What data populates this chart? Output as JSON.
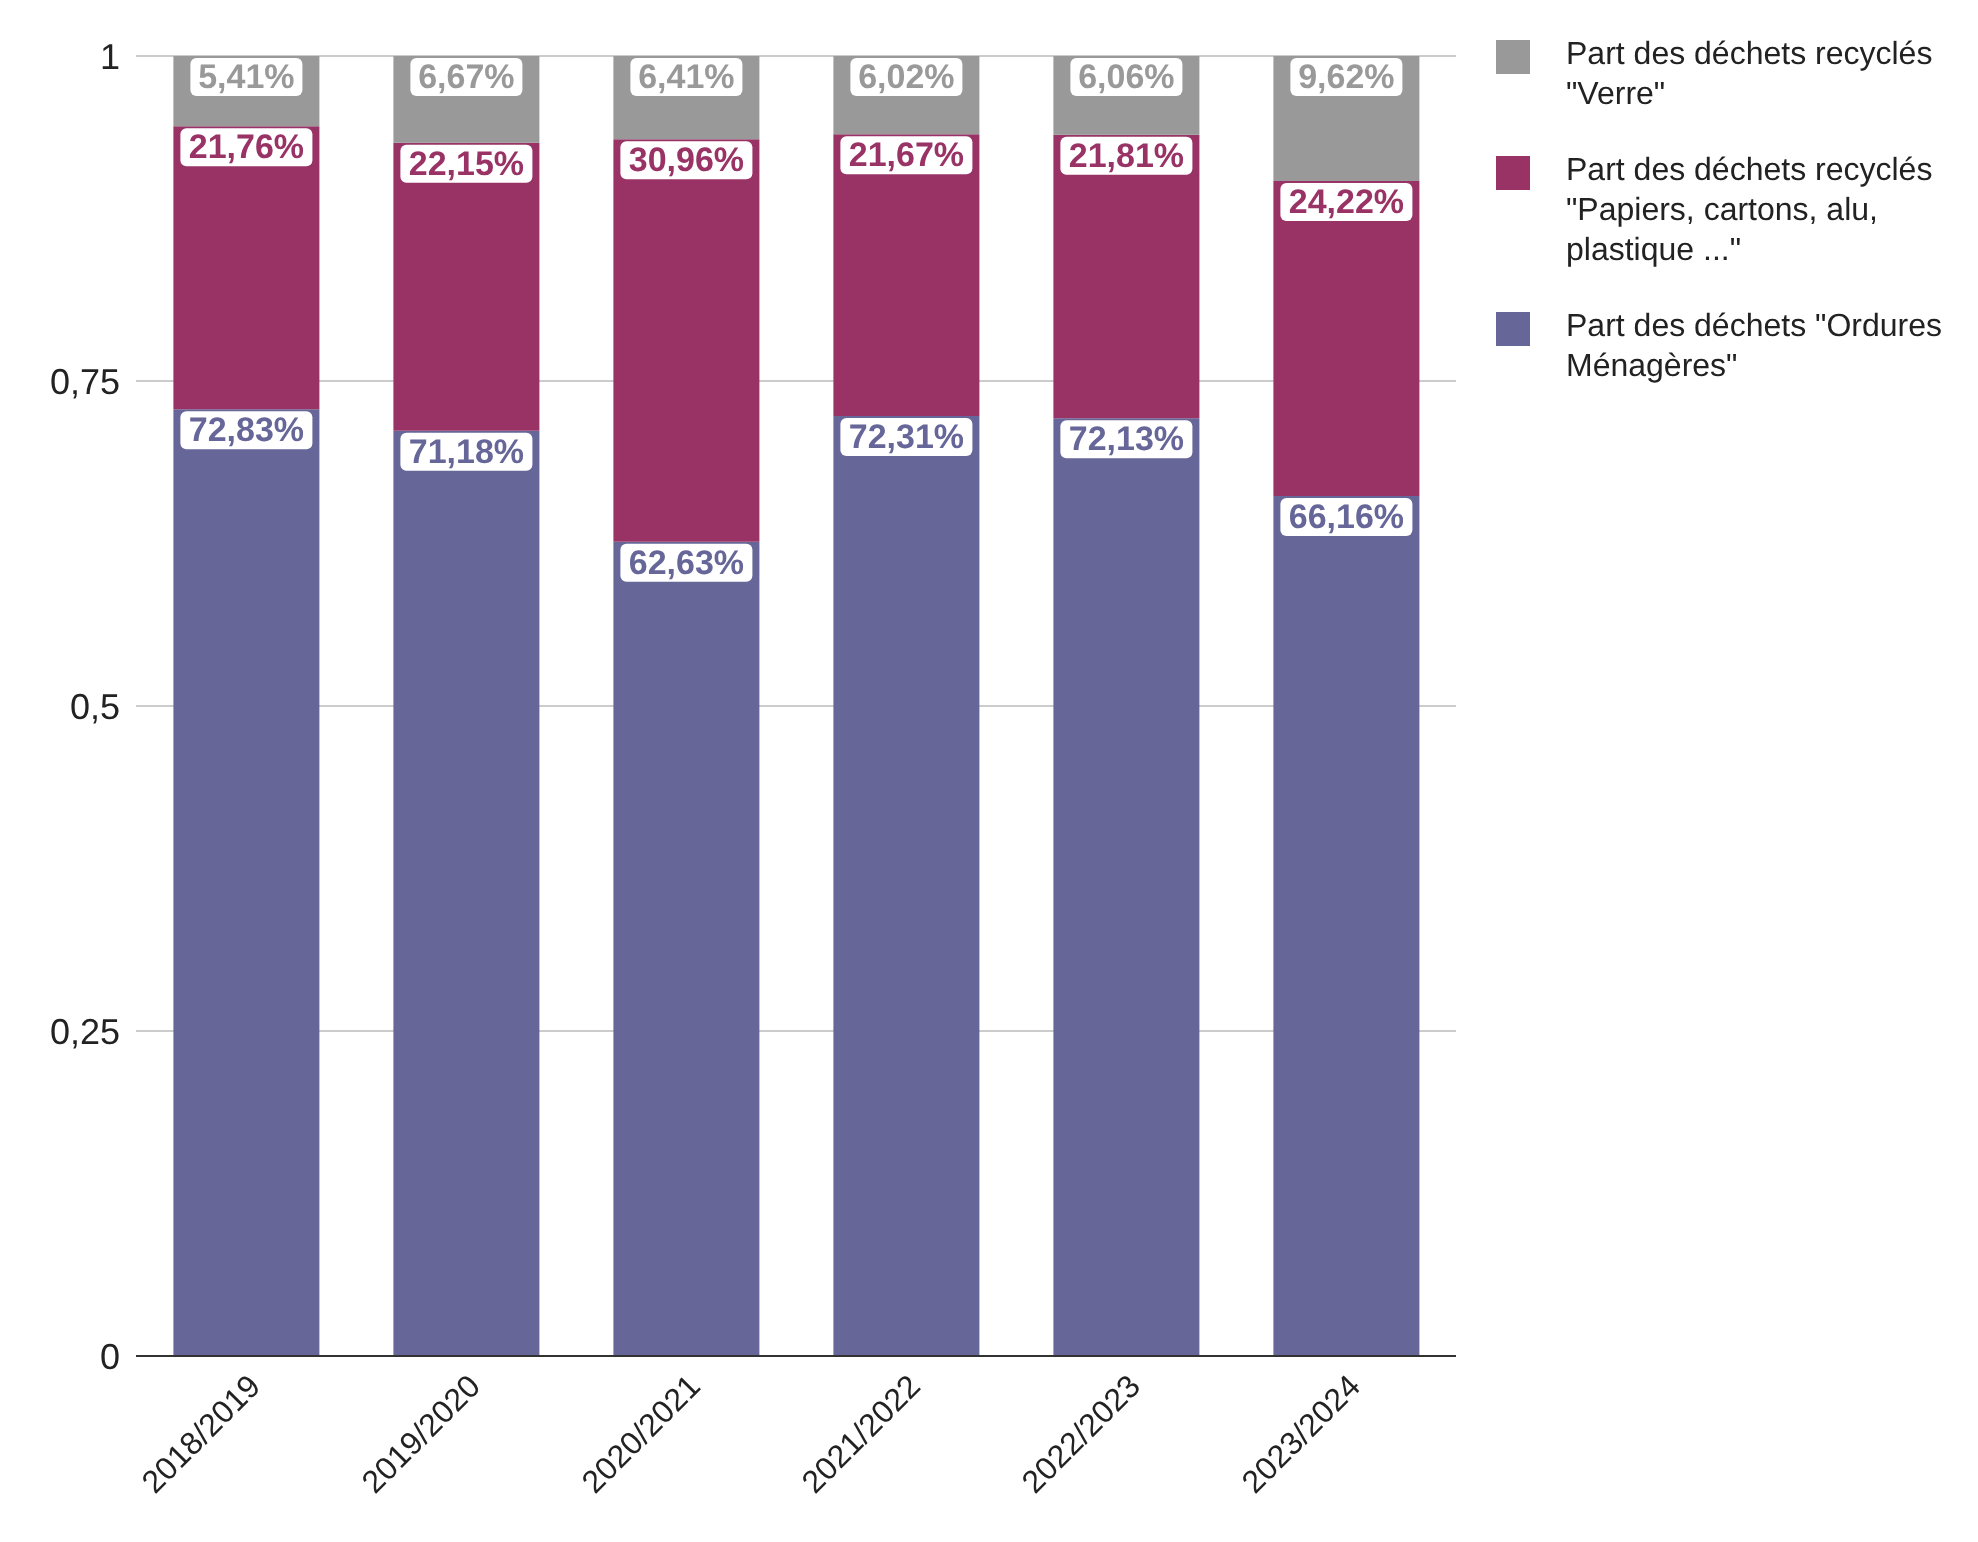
{
  "chart_data": {
    "type": "bar",
    "stacked": true,
    "categories": [
      "2018/2019",
      "2019/2020",
      "2020/2021",
      "2021/2022",
      "2022/2023",
      "2023/2024"
    ],
    "series": [
      {
        "name": "Part des déchets \"Ordures Ménagères\"",
        "color": "#666699",
        "values": [
          0.7283,
          0.7118,
          0.6263,
          0.7231,
          0.7213,
          0.6616
        ],
        "value_labels": [
          "72,83%",
          "71,18%",
          "62,63%",
          "72,31%",
          "72,13%",
          "66,16%"
        ]
      },
      {
        "name": "Part des déchets recyclés \"Papiers, cartons, alu, plastique ...\"",
        "color": "#993366",
        "values": [
          0.2176,
          0.2215,
          0.3096,
          0.2167,
          0.2181,
          0.2422
        ],
        "value_labels": [
          "21,76%",
          "22,15%",
          "30,96%",
          "21,67%",
          "21,81%",
          "24,22%"
        ]
      },
      {
        "name": "Part des déchets recyclés \"Verre\"",
        "color": "#999999",
        "values": [
          0.0541,
          0.0667,
          0.0641,
          0.0602,
          0.0606,
          0.0962
        ],
        "value_labels": [
          "5,41%",
          "6,67%",
          "6,41%",
          "6,02%",
          "6,06%",
          "9,62%"
        ]
      }
    ],
    "ylim": [
      0,
      1
    ],
    "yticks": [
      0,
      {
        "value": 0.25,
        "label": "0,25"
      },
      {
        "value": 0.5,
        "label": "0,5"
      },
      {
        "value": 0.75,
        "label": "0,75"
      },
      1
    ],
    "grid": "y",
    "legend": "top right"
  }
}
